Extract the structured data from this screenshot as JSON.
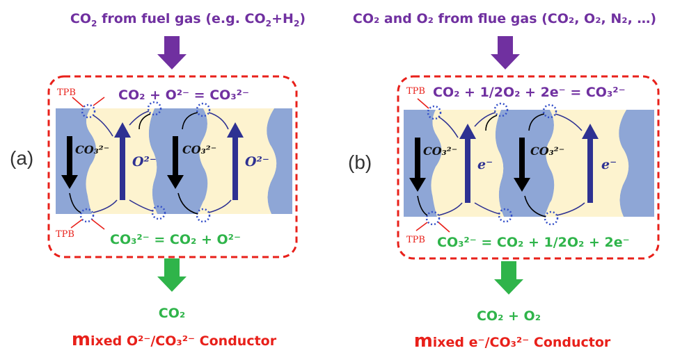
{
  "colors": {
    "purple": "#7030a0",
    "green": "#2fb44a",
    "red": "#e8201a",
    "blue": "#8ea6d6",
    "cream": "#fdf3cf",
    "navy": "#2e3192",
    "pore": "#3550c8"
  },
  "panels": [
    {
      "label": "(a)",
      "input_main": "CO",
      "input_sub1": "2",
      "input_rest": " from fuel gas (e.g. CO",
      "input_sub2": "2",
      "input_rest2": "+H",
      "input_sub3": "2",
      "input_close": ")",
      "top_reaction": "CO₂ + O²⁻ = CO₃²⁻",
      "bottom_reaction": "CO₃²⁻ = CO₂ + O²⁻",
      "tpb_top": "TPB",
      "tpb_bottom": "TPB",
      "carrier_left": "CO₃²⁻",
      "carrier_mid": "O²⁻",
      "carrier_right_a": "CO₃²⁻",
      "carrier_right_b": "O²⁻",
      "output": "CO₂",
      "conductor_prefix": "m",
      "conductor_text": "ixed O²⁻/CO₃²⁻ Conductor"
    },
    {
      "label": "(b)",
      "input_text": "CO₂ and O₂ from flue gas (CO₂, O₂, N₂, …)",
      "top_reaction": "CO₂ + 1/2O₂ + 2e⁻ = CO₃²⁻",
      "bottom_reaction": "CO₃²⁻ = CO₂ + 1/2O₂ + 2e⁻",
      "tpb_top": "TPB",
      "tpb_bottom": "TPB",
      "carrier_left": "CO₃²⁻",
      "carrier_mid": "e⁻",
      "carrier_right_a": "CO₃²⁻",
      "carrier_right_b": "e⁻",
      "output": "CO₂ + O₂",
      "conductor_prefix": "m",
      "conductor_text": "ixed e⁻/CO₃²⁻ Conductor"
    }
  ]
}
